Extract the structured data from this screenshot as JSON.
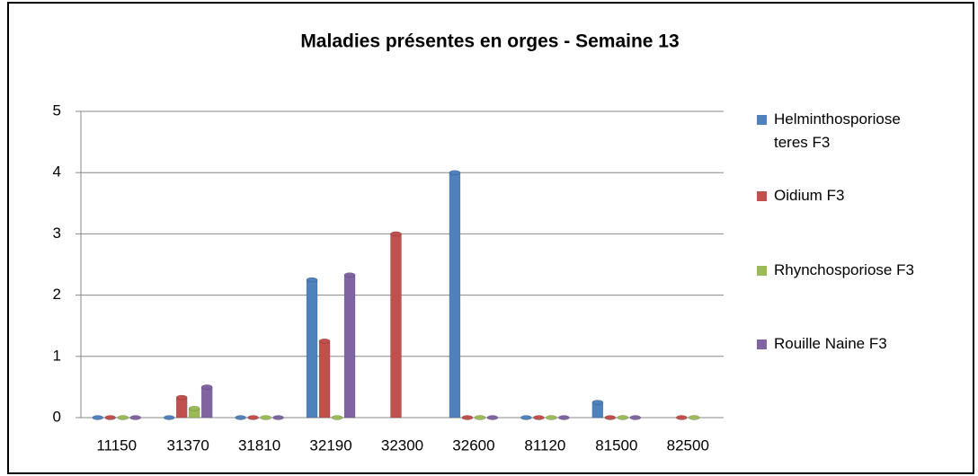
{
  "chart_data": {
    "type": "bar",
    "title": "Maladies présentes en orges - Semaine 13",
    "categories": [
      "11150",
      "31370",
      "31810",
      "32190",
      "32300",
      "32600",
      "81120",
      "81500",
      "82500"
    ],
    "series": [
      {
        "name": "Helminthosporiose teres F3",
        "color": "#4f81bd",
        "values": [
          0,
          0,
          0,
          2.25,
          null,
          4,
          0,
          0.25,
          null
        ]
      },
      {
        "name": "Oidium F3",
        "color": "#c0504d",
        "values": [
          0,
          0.33,
          0,
          1.25,
          3,
          0,
          0,
          0,
          0
        ]
      },
      {
        "name": "Rhynchosporiose F3",
        "color": "#9bbb59",
        "values": [
          0,
          0.15,
          0,
          0,
          null,
          0,
          0,
          0,
          0
        ]
      },
      {
        "name": "Rouille Naine F3",
        "color": "#8064a2",
        "values": [
          0,
          0.5,
          0,
          2.33,
          null,
          0,
          0,
          0,
          null
        ]
      }
    ],
    "ylim": [
      0,
      5
    ],
    "yticks": [
      0,
      1,
      2,
      3,
      4,
      5
    ],
    "grid": true,
    "legend": "right"
  }
}
